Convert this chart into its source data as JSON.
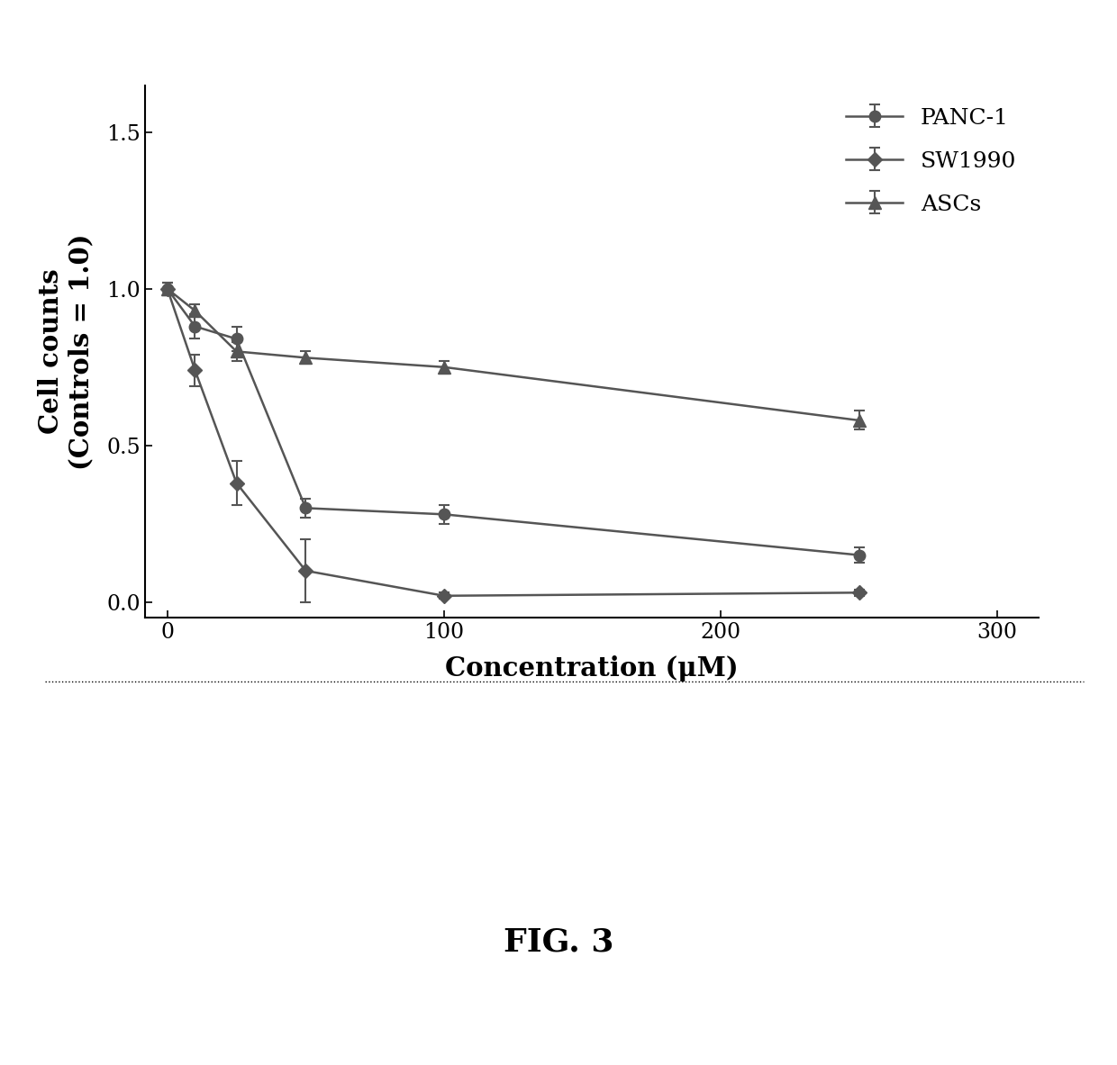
{
  "PANC1_x": [
    0,
    10,
    25,
    50,
    100,
    250
  ],
  "PANC1_y": [
    1.0,
    0.88,
    0.84,
    0.3,
    0.28,
    0.15
  ],
  "PANC1_yerr": [
    0.02,
    0.04,
    0.04,
    0.03,
    0.03,
    0.025
  ],
  "SW1990_x": [
    0,
    10,
    25,
    50,
    100,
    250
  ],
  "SW1990_y": [
    1.0,
    0.74,
    0.38,
    0.1,
    0.02,
    0.03
  ],
  "SW1990_yerr": [
    0.02,
    0.05,
    0.07,
    0.1,
    0.01,
    0.01
  ],
  "ASCs_x": [
    0,
    10,
    25,
    50,
    100,
    250
  ],
  "ASCs_y": [
    1.0,
    0.93,
    0.8,
    0.78,
    0.75,
    0.58
  ],
  "ASCs_yerr": [
    0.02,
    0.02,
    0.03,
    0.02,
    0.02,
    0.03
  ],
  "xlabel": "Concentration (μM)",
  "ylabel": "Cell counts\n(Controls = 1.0)",
  "xlim": [
    -8,
    315
  ],
  "ylim": [
    -0.05,
    1.65
  ],
  "xticks": [
    0,
    100,
    200,
    300
  ],
  "yticks": [
    0.0,
    0.5,
    1.0,
    1.5
  ],
  "color": "#555555",
  "fig_caption": "FIG. 3",
  "background_color": "#ffffff"
}
